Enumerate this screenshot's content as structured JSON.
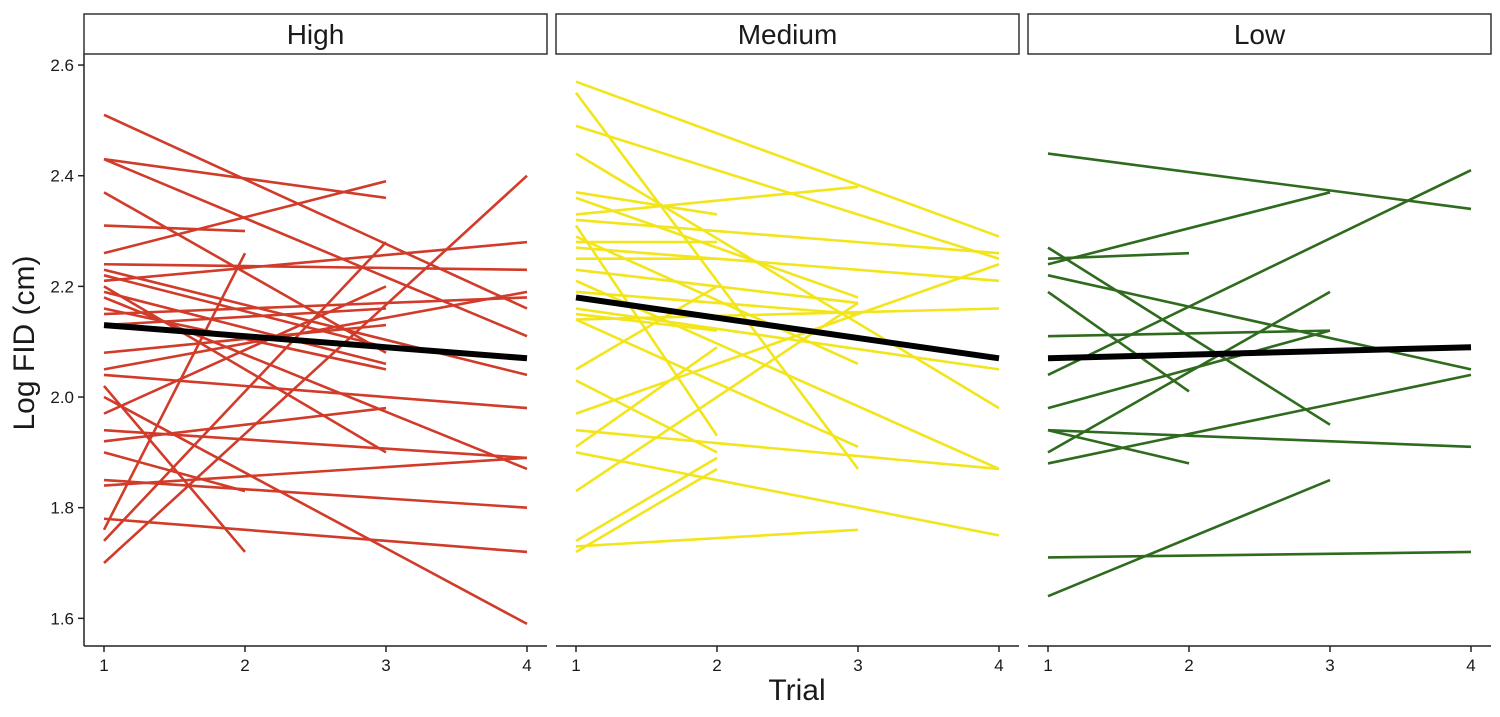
{
  "chart_data": {
    "type": "line",
    "xlabel": "Trial",
    "ylabel": "Log FID (cm)",
    "ylim": [
      1.55,
      2.62
    ],
    "x_ticks": [
      1,
      2,
      3,
      4
    ],
    "y_ticks": [
      1.6,
      1.8,
      2.0,
      2.2,
      2.4,
      2.6
    ],
    "y_tick_labels": [
      "1.6",
      "1.8",
      "2.0",
      "2.2",
      "2.4",
      "2.6"
    ],
    "x_tick_labels": [
      "1",
      "2",
      "3",
      "4"
    ],
    "grid": false,
    "panels": [
      {
        "name": "High",
        "color": "#d13b2a",
        "trend": {
          "x": [
            1,
            4
          ],
          "y": [
            2.13,
            2.07
          ]
        },
        "lines": [
          {
            "x": [
              1,
              4
            ],
            "y": [
              2.51,
              2.16
            ]
          },
          {
            "x": [
              1,
              3
            ],
            "y": [
              2.43,
              2.36
            ]
          },
          {
            "x": [
              1,
              4
            ],
            "y": [
              2.43,
              2.11
            ]
          },
          {
            "x": [
              1,
              3
            ],
            "y": [
              2.37,
              2.08
            ]
          },
          {
            "x": [
              1,
              2
            ],
            "y": [
              2.31,
              2.3
            ]
          },
          {
            "x": [
              1,
              3
            ],
            "y": [
              2.26,
              2.39
            ]
          },
          {
            "x": [
              1,
              4
            ],
            "y": [
              2.24,
              2.23
            ]
          },
          {
            "x": [
              1,
              4
            ],
            "y": [
              2.23,
              2.04
            ]
          },
          {
            "x": [
              1,
              3
            ],
            "y": [
              2.22,
              2.09
            ]
          },
          {
            "x": [
              1,
              4
            ],
            "y": [
              2.21,
              2.28
            ]
          },
          {
            "x": [
              1,
              3
            ],
            "y": [
              2.2,
              1.9
            ]
          },
          {
            "x": [
              1,
              3
            ],
            "y": [
              2.19,
              2.06
            ]
          },
          {
            "x": [
              1,
              4
            ],
            "y": [
              2.18,
              1.87
            ]
          },
          {
            "x": [
              1,
              3
            ],
            "y": [
              2.16,
              2.05
            ]
          },
          {
            "x": [
              1,
              4
            ],
            "y": [
              2.15,
              2.18
            ]
          },
          {
            "x": [
              1,
              3
            ],
            "y": [
              2.13,
              2.16
            ]
          },
          {
            "x": [
              1,
              3
            ],
            "y": [
              2.08,
              2.13
            ]
          },
          {
            "x": [
              1,
              4
            ],
            "y": [
              2.05,
              2.19
            ]
          },
          {
            "x": [
              1,
              4
            ],
            "y": [
              2.04,
              1.98
            ]
          },
          {
            "x": [
              1,
              2
            ],
            "y": [
              2.02,
              1.72
            ]
          },
          {
            "x": [
              1,
              4
            ],
            "y": [
              2.0,
              1.59
            ]
          },
          {
            "x": [
              1,
              3
            ],
            "y": [
              1.97,
              2.2
            ]
          },
          {
            "x": [
              1,
              4
            ],
            "y": [
              1.94,
              1.89
            ]
          },
          {
            "x": [
              1,
              3
            ],
            "y": [
              1.92,
              1.98
            ]
          },
          {
            "x": [
              1,
              2
            ],
            "y": [
              1.9,
              1.83
            ]
          },
          {
            "x": [
              1,
              4
            ],
            "y": [
              1.85,
              1.8
            ]
          },
          {
            "x": [
              1,
              4
            ],
            "y": [
              1.84,
              1.89
            ]
          },
          {
            "x": [
              1,
              4
            ],
            "y": [
              1.78,
              1.72
            ]
          },
          {
            "x": [
              1,
              2
            ],
            "y": [
              1.76,
              2.26
            ]
          },
          {
            "x": [
              1,
              3
            ],
            "y": [
              1.74,
              2.28
            ]
          },
          {
            "x": [
              1,
              4
            ],
            "y": [
              1.7,
              2.4
            ]
          }
        ]
      },
      {
        "name": "Medium",
        "color": "#f2e51b",
        "trend": {
          "x": [
            1,
            4
          ],
          "y": [
            2.18,
            2.07
          ]
        },
        "lines": [
          {
            "x": [
              1,
              4
            ],
            "y": [
              2.57,
              2.29
            ]
          },
          {
            "x": [
              1,
              3
            ],
            "y": [
              2.55,
              1.87
            ]
          },
          {
            "x": [
              1,
              4
            ],
            "y": [
              2.49,
              2.25
            ]
          },
          {
            "x": [
              1,
              4
            ],
            "y": [
              2.44,
              1.98
            ]
          },
          {
            "x": [
              1,
              2
            ],
            "y": [
              2.37,
              2.33
            ]
          },
          {
            "x": [
              1,
              3
            ],
            "y": [
              2.36,
              2.18
            ]
          },
          {
            "x": [
              1,
              3
            ],
            "y": [
              2.33,
              2.38
            ]
          },
          {
            "x": [
              1,
              4
            ],
            "y": [
              2.32,
              2.26
            ]
          },
          {
            "x": [
              1,
              2
            ],
            "y": [
              2.31,
              1.93
            ]
          },
          {
            "x": [
              1,
              3
            ],
            "y": [
              2.29,
              2.06
            ]
          },
          {
            "x": [
              1,
              2
            ],
            "y": [
              2.28,
              2.28
            ]
          },
          {
            "x": [
              1,
              4
            ],
            "y": [
              2.27,
              2.21
            ]
          },
          {
            "x": [
              1,
              2
            ],
            "y": [
              2.25,
              2.25
            ]
          },
          {
            "x": [
              1,
              3
            ],
            "y": [
              2.23,
              2.17
            ]
          },
          {
            "x": [
              1,
              4
            ],
            "y": [
              2.21,
              1.87
            ]
          },
          {
            "x": [
              1,
              3
            ],
            "y": [
              2.19,
              2.15
            ]
          },
          {
            "x": [
              1,
              4
            ],
            "y": [
              2.16,
              2.05
            ]
          },
          {
            "x": [
              1,
              2
            ],
            "y": [
              2.15,
              2.12
            ]
          },
          {
            "x": [
              1,
              3
            ],
            "y": [
              2.14,
              1.91
            ]
          },
          {
            "x": [
              1,
              4
            ],
            "y": [
              2.14,
              2.16
            ]
          },
          {
            "x": [
              1,
              2
            ],
            "y": [
              2.05,
              2.2
            ]
          },
          {
            "x": [
              1,
              2
            ],
            "y": [
              2.03,
              1.9
            ]
          },
          {
            "x": [
              1,
              4
            ],
            "y": [
              1.97,
              2.24
            ]
          },
          {
            "x": [
              1,
              4
            ],
            "y": [
              1.94,
              1.87
            ]
          },
          {
            "x": [
              1,
              2
            ],
            "y": [
              1.91,
              2.09
            ]
          },
          {
            "x": [
              1,
              4
            ],
            "y": [
              1.9,
              1.75
            ]
          },
          {
            "x": [
              1,
              3
            ],
            "y": [
              1.83,
              2.17
            ]
          },
          {
            "x": [
              1,
              2
            ],
            "y": [
              1.74,
              1.89
            ]
          },
          {
            "x": [
              1,
              3
            ],
            "y": [
              1.73,
              1.76
            ]
          },
          {
            "x": [
              1,
              2
            ],
            "y": [
              1.72,
              1.87
            ]
          }
        ]
      },
      {
        "name": "Low",
        "color": "#2f6b1e",
        "trend": {
          "x": [
            1,
            4
          ],
          "y": [
            2.07,
            2.09
          ]
        },
        "lines": [
          {
            "x": [
              1,
              4
            ],
            "y": [
              2.44,
              2.34
            ]
          },
          {
            "x": [
              1,
              3
            ],
            "y": [
              2.27,
              1.95
            ]
          },
          {
            "x": [
              1,
              2
            ],
            "y": [
              2.25,
              2.26
            ]
          },
          {
            "x": [
              1,
              3
            ],
            "y": [
              2.24,
              2.37
            ]
          },
          {
            "x": [
              1,
              4
            ],
            "y": [
              2.22,
              2.05
            ]
          },
          {
            "x": [
              1,
              2
            ],
            "y": [
              2.19,
              2.01
            ]
          },
          {
            "x": [
              1,
              3
            ],
            "y": [
              2.11,
              2.12
            ]
          },
          {
            "x": [
              1,
              4
            ],
            "y": [
              2.04,
              2.41
            ]
          },
          {
            "x": [
              1,
              3
            ],
            "y": [
              1.98,
              2.12
            ]
          },
          {
            "x": [
              1,
              4
            ],
            "y": [
              1.94,
              1.91
            ]
          },
          {
            "x": [
              1,
              2
            ],
            "y": [
              1.94,
              1.88
            ]
          },
          {
            "x": [
              1,
              3
            ],
            "y": [
              1.9,
              2.19
            ]
          },
          {
            "x": [
              1,
              4
            ],
            "y": [
              1.88,
              2.04
            ]
          },
          {
            "x": [
              1,
              4
            ],
            "y": [
              1.71,
              1.72
            ]
          },
          {
            "x": [
              1,
              3
            ],
            "y": [
              1.64,
              1.85
            ]
          }
        ]
      }
    ]
  }
}
